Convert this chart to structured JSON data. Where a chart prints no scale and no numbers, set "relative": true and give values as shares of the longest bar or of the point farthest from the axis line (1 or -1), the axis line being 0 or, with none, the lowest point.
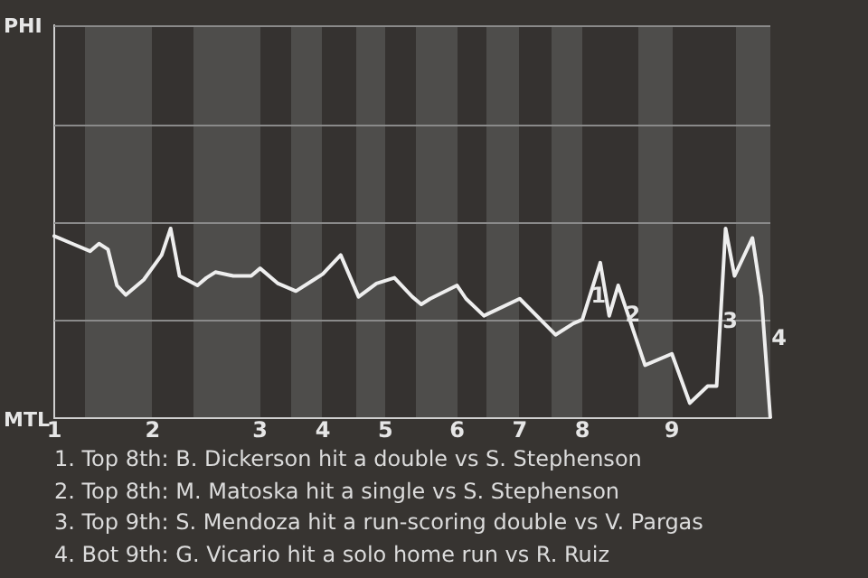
{
  "chart_data": {
    "type": "line",
    "relative": true,
    "categories": [
      "1",
      null,
      null,
      null,
      null,
      null,
      null,
      null,
      null,
      null,
      null,
      "2",
      null,
      null,
      null,
      null,
      null,
      null,
      null,
      null,
      null,
      null,
      null,
      "3",
      null,
      null,
      null,
      null,
      null,
      null,
      "4",
      null,
      null,
      null,
      null,
      null,
      null,
      "5",
      null,
      null,
      null,
      null,
      null,
      null,
      null,
      "6",
      null,
      null,
      null,
      null,
      null,
      null,
      "7",
      null,
      null,
      null,
      null,
      null,
      null,
      "8",
      null,
      null,
      null,
      null,
      null,
      null,
      null,
      null,
      null,
      "9",
      null,
      null,
      null,
      null,
      null,
      null,
      null,
      null,
      null,
      null,
      null
    ],
    "series": [
      {
        "color": "#eeeeee",
        "values": [
          0.96,
          null,
          0.92,
          null,
          0.88,
          0.92,
          0.89,
          0.7,
          0.65,
          null,
          0.73,
          null,
          0.86,
          1,
          0.75,
          null,
          0.7,
          0.74,
          0.77,
          null,
          0.75,
          null,
          0.75,
          0.79,
          null,
          0.71,
          null,
          0.67,
          null,
          0.73,
          0.76,
          null,
          0.86,
          null,
          0.64,
          null,
          0.71,
          null,
          0.74,
          null,
          0.64,
          0.6,
          0.63,
          null,
          null,
          0.7,
          0.63,
          null,
          0.54,
          null,
          null,
          null,
          0.63,
          null,
          null,
          null,
          0.44,
          null,
          0.5,
          0.52,
          null,
          0.82,
          0.54,
          0.7,
          null,
          null,
          0.28,
          null,
          null,
          0.34,
          null,
          0.08,
          null,
          0.17,
          0.17,
          1,
          0.75,
          null,
          0.95,
          0.64,
          0
        ]
      }
    ],
    "annotations": [
      "PHI",
      "MTL",
      "1",
      "2",
      "3",
      "4",
      "1. Top 8th: B. Dickerson hit a double vs S. Stephenson",
      "2. Top 8th: M. Matoska hit a single vs S. Stephenson",
      "3. Top 9th: S. Mendoza hit a run-scoring double vs V. Pargas",
      "4. Bot 9th: G. Vicario hit a solo home run vs R. Ruiz"
    ],
    "ref_lines": [
      {
        "axis": "y",
        "value": 0.52,
        "color": "#8a8a8a"
      },
      {
        "axis": "y",
        "value": 1.03,
        "color": "#8a8a8a"
      },
      {
        "axis": "y",
        "value": 1.55,
        "color": "#8a8a8a"
      },
      {
        "axis": "y",
        "value": 2.07,
        "color": "#8a8a8a"
      }
    ],
    "marker": "none",
    "legend": false
  }
}
